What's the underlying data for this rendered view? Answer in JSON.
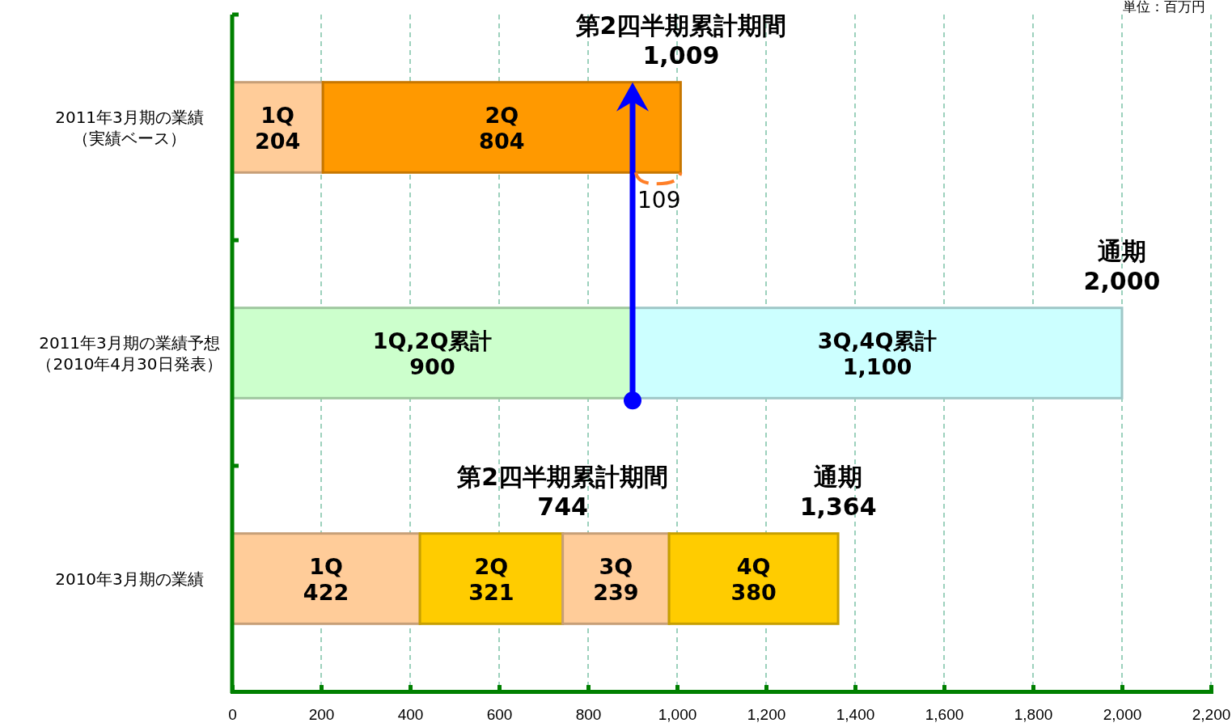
{
  "chart_data": {
    "type": "bar",
    "orientation": "horizontal",
    "stacked": true,
    "categories": [
      "2011年3月期の業績（実績ベース）",
      "2011年3月期の業績予想（2010年4月30日発表）",
      "2010年3月期の業績"
    ],
    "series": [
      {
        "values": [
          204,
          900,
          422
        ],
        "colors": [
          "#ffcc99",
          "#ccffcc",
          "#ffcc99"
        ],
        "value_labels": [
          "204",
          "900",
          "422"
        ]
      },
      {
        "values": [
          804,
          1100,
          321
        ],
        "colors": [
          "#ff9900",
          "#ccffff",
          "#ffcc00"
        ],
        "value_labels": [
          "804",
          "1,100",
          "321"
        ]
      },
      {
        "values": [
          null,
          null,
          239
        ],
        "colors": [
          null,
          null,
          "#ffcc99"
        ],
        "value_labels": [
          null,
          null,
          "239"
        ]
      },
      {
        "values": [
          null,
          null,
          380
        ],
        "colors": [
          null,
          null,
          "#ffcc00"
        ],
        "value_labels": [
          null,
          null,
          "380"
        ]
      }
    ],
    "xlim": [
      0,
      2200
    ],
    "xticks": [
      0,
      {
        "value": 200,
        "label": "200"
      },
      {
        "value": 400,
        "label": "400"
      },
      {
        "value": 600,
        "label": "600"
      },
      {
        "value": 800,
        "label": "800"
      },
      {
        "value": 1000,
        "label": "1,000"
      },
      {
        "value": 1200,
        "label": "1,200"
      },
      {
        "value": 1400,
        "label": "1,400"
      },
      {
        "value": 1600,
        "label": "1,600"
      },
      {
        "value": 1800,
        "label": "1,800"
      },
      {
        "value": 2000,
        "label": "2,000"
      },
      {
        "value": 2200,
        "label": "2,200"
      }
    ],
    "grid": "x",
    "annotations": [
      "単位：百万円",
      "1Q",
      "1Q,2Q累計",
      "1Q",
      "2Q",
      "3Q,4Q累計",
      "2Q",
      "3Q",
      "4Q",
      "109",
      {
        "text": "第2四半期累計期間\n1,009",
        "x": 1009,
        "y": "2011年3月期の業績（実績ベース）"
      },
      {
        "text": "通期\n2,000",
        "x": 2000,
        "y": "2011年3月期の業績予想（2010年4月30日発表）"
      },
      {
        "text": "第2四半期累計期間\n744",
        "x": 743,
        "y": "2010年3月期の業績"
      },
      {
        "text": "通期\n1,364",
        "x": 1362,
        "y": "2010年3月期の業績"
      }
    ]
  }
}
